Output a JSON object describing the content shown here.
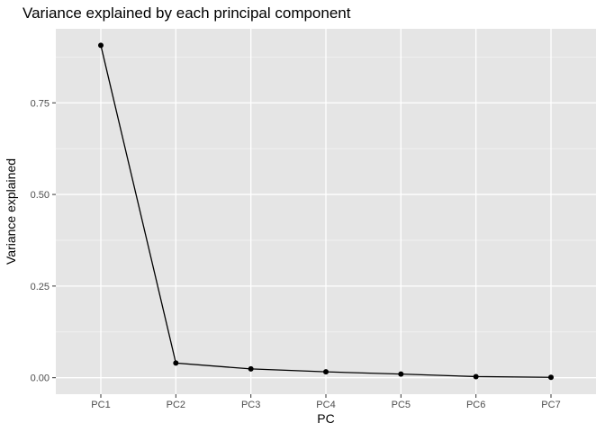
{
  "chart_data": {
    "type": "line",
    "title": "Variance explained by each principal component",
    "xlabel": "PC",
    "ylabel": "Variance explained",
    "categories": [
      "PC1",
      "PC2",
      "PC3",
      "PC4",
      "PC5",
      "PC6",
      "PC7"
    ],
    "values": [
      0.907,
      0.04,
      0.024,
      0.016,
      0.01,
      0.003,
      0.001
    ],
    "yticks": [
      0.0,
      0.25,
      0.5,
      0.75
    ],
    "ytick_labels": [
      "0.00",
      "0.25",
      "0.50",
      "0.75"
    ],
    "ylim": [
      -0.045,
      0.952
    ],
    "grid": true,
    "colors": {
      "panel_bg": "#e5e5e5",
      "grid_major": "#ffffff",
      "grid_minor": "#f2f2f2",
      "line": "#000000",
      "point": "#000000",
      "tick_text": "#4d4d4d"
    }
  }
}
